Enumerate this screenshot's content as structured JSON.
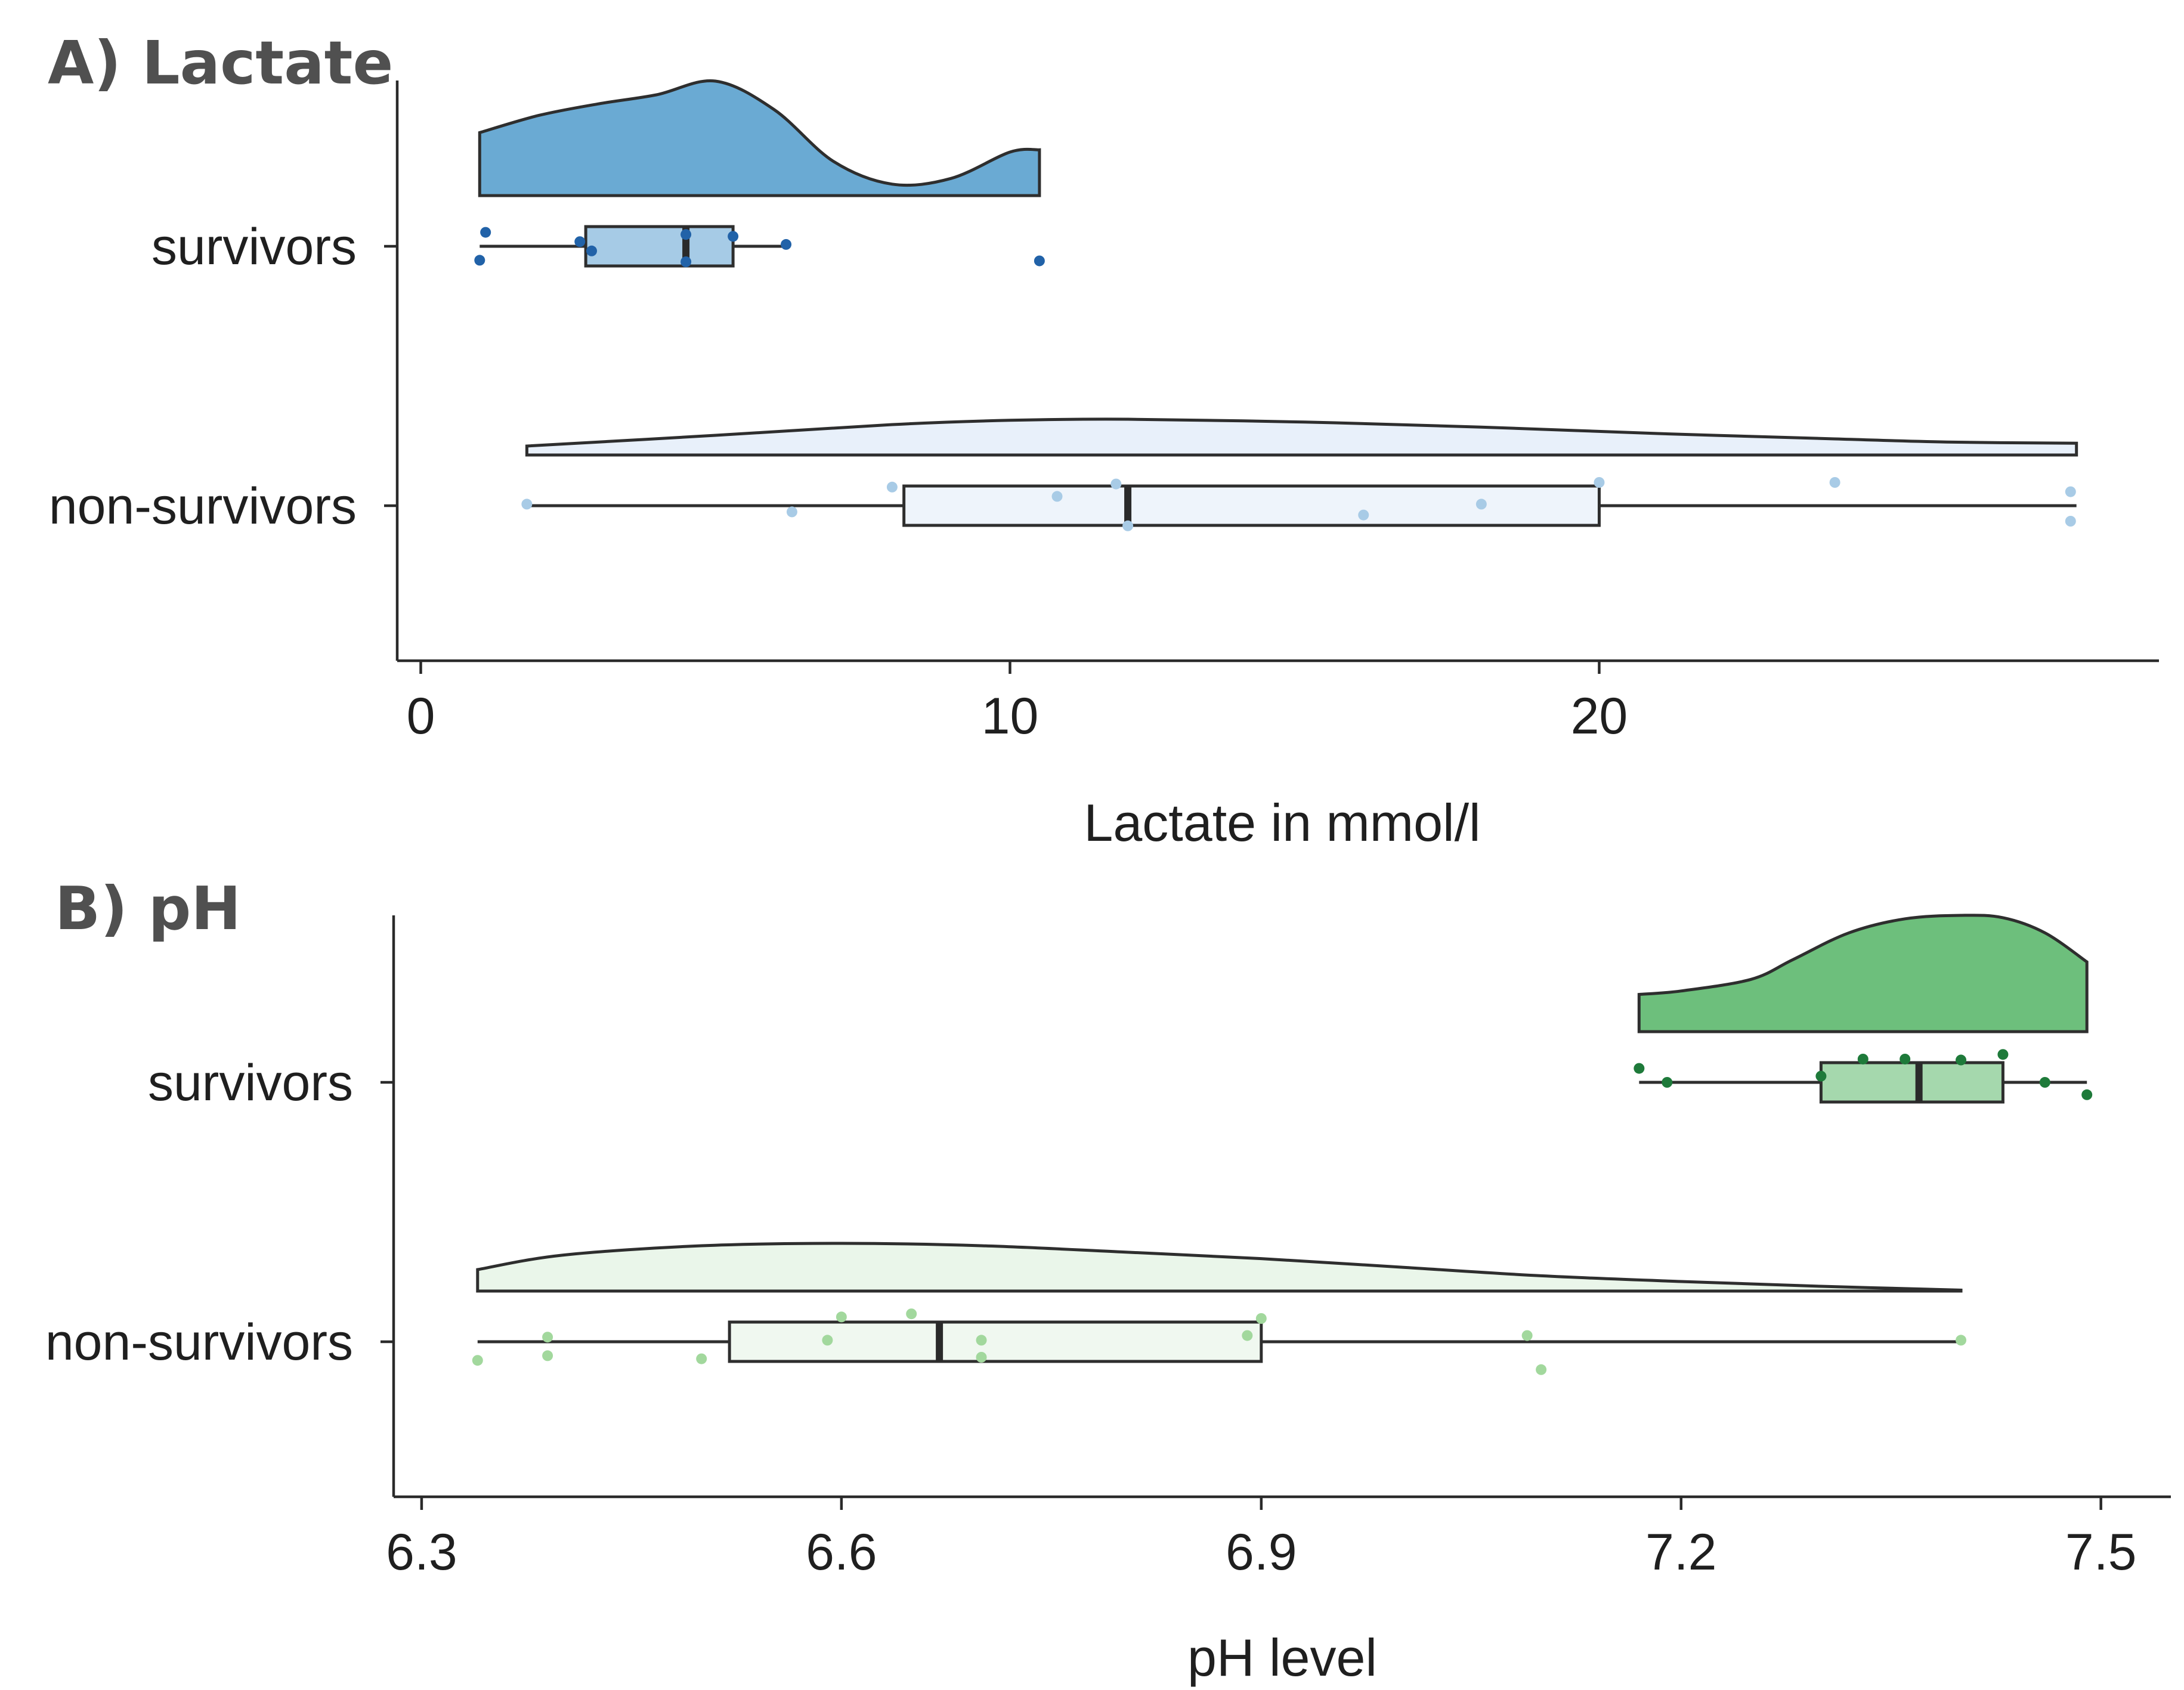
{
  "colors": {
    "lactate_survivors": "#6aaad3",
    "lactate_survivors_box": "#a6cbe6",
    "lactate_survivors_points": "#2162a8",
    "lactate_nonsurvivors": "#e8f0fa",
    "lactate_nonsurvivors_box": "#eef4fb",
    "lactate_nonsurvivors_points": "#a8cbe6",
    "ph_survivors": "#6dbf7c",
    "ph_survivors_box": "#a5d8ad",
    "ph_survivors_points": "#1e7a3a",
    "ph_nonsurvivors": "#eaf6ea",
    "ph_nonsurvivors_box": "#f0f8f0",
    "ph_nonsurvivors_points": "#a2d89d",
    "outline": "#2e2e2e"
  },
  "chart_data": [
    {
      "type": "raincloud",
      "panel_title": "A) Lactate",
      "xlabel": "Lactate in mmol/l",
      "xlim": [
        -0.4,
        29.5
      ],
      "xticks": [
        0,
        10,
        20
      ],
      "xtick_labels": [
        "0",
        "10",
        "20"
      ],
      "groups": [
        {
          "name": "survivors",
          "color_key": "lactate_survivors",
          "density": {
            "x": [
              1.0,
              2.0,
              3.0,
              4.0,
              5.0,
              6.0,
              7.0,
              8.0,
              9.0,
              10.0,
              10.5
            ],
            "y": [
              0.55,
              0.7,
              0.8,
              0.88,
              1.0,
              0.75,
              0.3,
              0.1,
              0.15,
              0.38,
              0.4
            ]
          },
          "box": {
            "min": 1.0,
            "q1": 2.8,
            "median": 4.5,
            "q3": 5.3,
            "max": 6.2
          },
          "points": [
            {
              "x": 1.1,
              "jitter": 0.45
            },
            {
              "x": 2.7,
              "jitter": 0.15
            },
            {
              "x": 2.9,
              "jitter": -0.15
            },
            {
              "x": 4.5,
              "jitter": 0.38
            },
            {
              "x": 5.3,
              "jitter": 0.32
            },
            {
              "x": 6.2,
              "jitter": 0.06
            },
            {
              "x": 1.0,
              "jitter": -0.45
            },
            {
              "x": 4.5,
              "jitter": -0.5
            },
            {
              "x": 10.5,
              "jitter": -0.47
            }
          ]
        },
        {
          "name": "non-survivors",
          "color_key": "lactate_nonsurvivors",
          "density": {
            "x": [
              1.8,
              5.0,
              8.0,
              10.0,
              12.0,
              15.0,
              18.0,
              21.0,
              24.0,
              26.0,
              28.1
            ],
            "y": [
              0.25,
              0.55,
              0.85,
              0.97,
              1.0,
              0.92,
              0.78,
              0.6,
              0.45,
              0.36,
              0.33
            ]
          },
          "box": {
            "min": 1.8,
            "q1": 8.2,
            "median": 12.0,
            "q3": 20.0,
            "max": 28.1
          },
          "points": [
            {
              "x": 1.8,
              "jitter": 0.05
            },
            {
              "x": 6.3,
              "jitter": -0.2
            },
            {
              "x": 8.0,
              "jitter": 0.6
            },
            {
              "x": 10.8,
              "jitter": 0.3
            },
            {
              "x": 11.8,
              "jitter": 0.7
            },
            {
              "x": 12.0,
              "jitter": -0.65
            },
            {
              "x": 16.0,
              "jitter": -0.3
            },
            {
              "x": 18.0,
              "jitter": 0.05
            },
            {
              "x": 20.0,
              "jitter": 0.75
            },
            {
              "x": 24.0,
              "jitter": 0.75
            },
            {
              "x": 28.0,
              "jitter": 0.45
            },
            {
              "x": 28.0,
              "jitter": -0.5
            }
          ]
        }
      ]
    },
    {
      "type": "raincloud",
      "panel_title": "B) pH",
      "xlabel": "pH level",
      "xlim": [
        6.28,
        7.55
      ],
      "xticks": [
        6.3,
        6.6,
        6.9,
        7.2,
        7.5
      ],
      "xtick_labels": [
        "6.3",
        "6.6",
        "6.9",
        "7.2",
        "7.5"
      ],
      "groups": [
        {
          "name": "survivors",
          "color_key": "ph_survivors",
          "density": {
            "x": [
              7.17,
              7.2,
              7.25,
              7.28,
              7.32,
              7.36,
              7.4,
              7.43,
              7.46,
              7.49
            ],
            "y": [
              0.32,
              0.35,
              0.45,
              0.62,
              0.85,
              0.97,
              1.0,
              0.98,
              0.85,
              0.6
            ]
          },
          "box": {
            "min": 7.17,
            "q1": 7.3,
            "median": 7.37,
            "q3": 7.43,
            "max": 7.49
          },
          "points": [
            {
              "x": 7.17,
              "jitter": 0.45
            },
            {
              "x": 7.19,
              "jitter": 0.0
            },
            {
              "x": 7.3,
              "jitter": 0.2
            },
            {
              "x": 7.33,
              "jitter": 0.75
            },
            {
              "x": 7.36,
              "jitter": 0.75
            },
            {
              "x": 7.4,
              "jitter": 0.72
            },
            {
              "x": 7.43,
              "jitter": 0.9
            },
            {
              "x": 7.46,
              "jitter": 0.0
            },
            {
              "x": 7.49,
              "jitter": -0.4
            }
          ]
        },
        {
          "name": "non-survivors",
          "color_key": "ph_nonsurvivors",
          "density": {
            "x": [
              6.34,
              6.4,
              6.5,
              6.6,
              6.7,
              6.8,
              6.9,
              7.0,
              7.1,
              7.2,
              7.3,
              7.4
            ],
            "y": [
              0.45,
              0.75,
              0.95,
              1.0,
              0.95,
              0.82,
              0.68,
              0.5,
              0.32,
              0.2,
              0.1,
              0.02
            ]
          },
          "box": {
            "min": 6.34,
            "q1": 6.52,
            "median": 6.67,
            "q3": 6.9,
            "max": 7.4
          },
          "points": [
            {
              "x": 6.34,
              "jitter": -0.6
            },
            {
              "x": 6.39,
              "jitter": 0.15
            },
            {
              "x": 6.39,
              "jitter": -0.45
            },
            {
              "x": 6.5,
              "jitter": -0.55
            },
            {
              "x": 6.59,
              "jitter": 0.05
            },
            {
              "x": 6.6,
              "jitter": 0.8
            },
            {
              "x": 6.65,
              "jitter": 0.9
            },
            {
              "x": 6.7,
              "jitter": 0.05
            },
            {
              "x": 6.7,
              "jitter": -0.5
            },
            {
              "x": 6.89,
              "jitter": 0.2
            },
            {
              "x": 6.9,
              "jitter": 0.75
            },
            {
              "x": 7.09,
              "jitter": 0.2
            },
            {
              "x": 7.1,
              "jitter": -0.9
            },
            {
              "x": 7.4,
              "jitter": 0.05
            }
          ]
        }
      ]
    }
  ]
}
